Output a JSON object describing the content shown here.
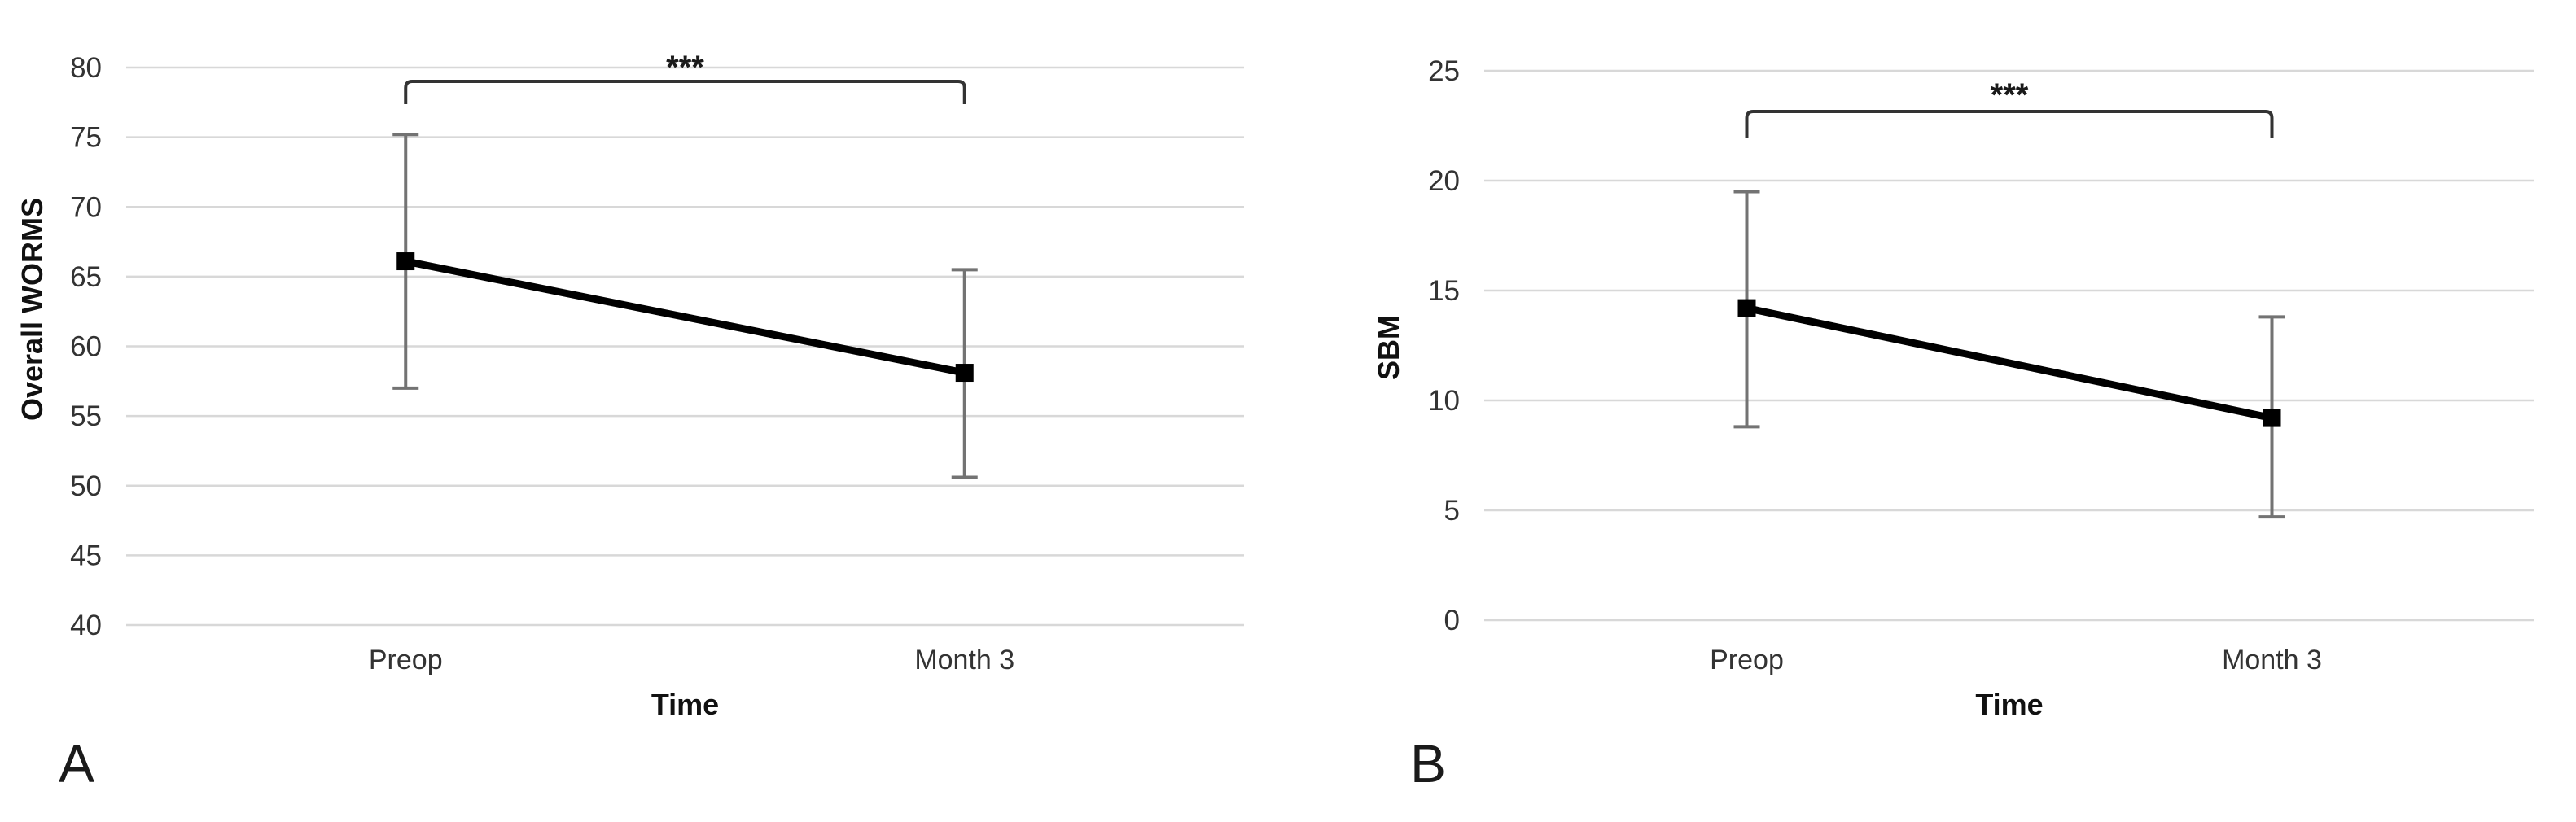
{
  "figure": {
    "background": "#ffffff",
    "panels": [
      {
        "letter": "A"
      },
      {
        "letter": "B"
      }
    ]
  },
  "colors": {
    "series_line": "#000000",
    "marker": "#000000",
    "error_bar": "#737373",
    "gridline": "#d8d8d8",
    "bracket": "#333333",
    "tick_text": "#333333",
    "title_text": "#111111",
    "significance_text": "#1a1a1a"
  },
  "chart_data": [
    {
      "type": "line",
      "panel_letter": "A",
      "title": "",
      "ylabel": "Overall WORMS",
      "xlabel": "Time",
      "categories": [
        "Preop",
        "Month 3"
      ],
      "series": [
        {
          "name": "Overall WORMS mean",
          "values": [
            66.1,
            58.1
          ]
        }
      ],
      "error_bars": [
        {
          "category": "Preop",
          "upper": 75.2,
          "lower": 57.0
        },
        {
          "category": "Month 3",
          "upper": 65.5,
          "lower": 50.6
        }
      ],
      "ylim": [
        40,
        80
      ],
      "yticks": [
        40,
        45,
        50,
        55,
        60,
        65,
        70,
        75,
        80
      ],
      "grid": "horizontal",
      "legend": "none",
      "marker": "square",
      "significance": {
        "label": "***",
        "between": [
          "Preop",
          "Month 3"
        ]
      }
    },
    {
      "type": "line",
      "panel_letter": "B",
      "title": "",
      "ylabel": "SBM",
      "xlabel": "Time",
      "categories": [
        "Preop",
        "Month 3"
      ],
      "series": [
        {
          "name": "SBM mean",
          "values": [
            14.2,
            9.2
          ]
        }
      ],
      "error_bars": [
        {
          "category": "Preop",
          "upper": 19.5,
          "lower": 8.8
        },
        {
          "category": "Month 3",
          "upper": 13.8,
          "lower": 4.7
        }
      ],
      "ylim": [
        0,
        25
      ],
      "yticks": [
        0,
        5,
        10,
        15,
        20,
        25
      ],
      "grid": "horizontal",
      "legend": "none",
      "marker": "square",
      "significance": {
        "label": "***",
        "between": [
          "Preop",
          "Month 3"
        ]
      }
    }
  ]
}
